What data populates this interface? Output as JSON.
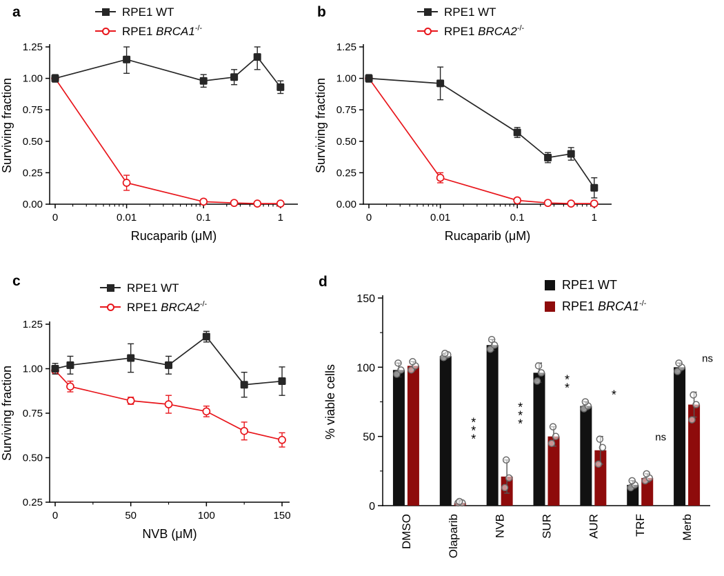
{
  "figure": {
    "background": "#ffffff",
    "panel_letters": [
      "a",
      "b",
      "c",
      "d"
    ]
  },
  "colors": {
    "wt_black": "#262626",
    "line_red": "#e8151b",
    "bar_black": "#111111",
    "bar_dark_red": "#8e0b0b",
    "scatter_gray": "#6b6b6b"
  },
  "chart_data": [
    {
      "id": "a",
      "type": "line",
      "title": "",
      "xlabel": "Rucaparib (μM)",
      "ylabel": "Surviving fraction",
      "xscale": "log-zero",
      "ylim": [
        0,
        1.25
      ],
      "yticks": [
        {
          "v": 0,
          "label": "0.00"
        },
        {
          "v": 0.25,
          "label": "0.25"
        },
        {
          "v": 0.5,
          "label": "0.50"
        },
        {
          "v": 0.75,
          "label": "0.75"
        },
        {
          "v": 1,
          "label": "1.00"
        },
        {
          "v": 1.25,
          "label": "1.25"
        }
      ],
      "xticks": [
        {
          "v": 0,
          "label": "0"
        },
        {
          "v": 0.01,
          "label": "0.01"
        },
        {
          "v": 0.1,
          "label": "0.1"
        },
        {
          "v": 1,
          "label": "1"
        }
      ],
      "legend": [
        {
          "prefix": "RPE1 WT",
          "gene": "",
          "sup": ""
        },
        {
          "prefix": "RPE1 ",
          "gene": "BRCA1",
          "sup": "-/-"
        }
      ],
      "series": [
        {
          "name": "RPE1 WT",
          "marker": "square",
          "color": "#262626",
          "x": [
            0,
            0.01,
            0.1,
            0.25,
            0.5,
            1
          ],
          "y": [
            1.0,
            1.15,
            0.98,
            1.01,
            1.17,
            0.93
          ],
          "err": [
            0.03,
            0.11,
            0.05,
            0.06,
            0.1,
            0.05
          ]
        },
        {
          "name": "RPE1 BRCA1-/-",
          "marker": "open-circle",
          "color": "#e8151b",
          "x": [
            0,
            0.01,
            0.1,
            0.25,
            0.5,
            1
          ],
          "y": [
            1.0,
            0.17,
            0.02,
            0.01,
            0.005,
            0.005
          ],
          "err": [
            0,
            0.06,
            0.02,
            0,
            0,
            0
          ]
        }
      ]
    },
    {
      "id": "b",
      "type": "line",
      "title": "",
      "xlabel": "Rucaparib (μM)",
      "ylabel": "Surviving fraction",
      "xscale": "log-zero",
      "ylim": [
        0,
        1.25
      ],
      "yticks": [
        {
          "v": 0,
          "label": "0.00"
        },
        {
          "v": 0.25,
          "label": "0.25"
        },
        {
          "v": 0.5,
          "label": "0.50"
        },
        {
          "v": 0.75,
          "label": "0.75"
        },
        {
          "v": 1,
          "label": "1.00"
        },
        {
          "v": 1.25,
          "label": "1.25"
        }
      ],
      "xticks": [
        {
          "v": 0,
          "label": "0"
        },
        {
          "v": 0.01,
          "label": "0.01"
        },
        {
          "v": 0.1,
          "label": "0.1"
        },
        {
          "v": 1,
          "label": "1"
        }
      ],
      "legend": [
        {
          "prefix": "RPE1 WT",
          "gene": "",
          "sup": ""
        },
        {
          "prefix": "RPE1 ",
          "gene": "BRCA2",
          "sup": "-/-"
        }
      ],
      "series": [
        {
          "name": "RPE1 WT",
          "marker": "square",
          "color": "#262626",
          "x": [
            0,
            0.01,
            0.1,
            0.25,
            0.5,
            1
          ],
          "y": [
            1.0,
            0.96,
            0.57,
            0.37,
            0.4,
            0.13
          ],
          "err": [
            0.03,
            0.13,
            0.04,
            0.04,
            0.05,
            0.08
          ]
        },
        {
          "name": "RPE1 BRCA2-/-",
          "marker": "open-circle",
          "color": "#e8151b",
          "x": [
            0,
            0.01,
            0.1,
            0.25,
            0.5,
            1
          ],
          "y": [
            1.0,
            0.21,
            0.03,
            0.01,
            0.005,
            0.005
          ],
          "err": [
            0,
            0.04,
            0.02,
            0,
            0,
            0
          ]
        }
      ]
    },
    {
      "id": "c",
      "type": "line",
      "title": "",
      "xlabel": "NVB (μM)",
      "ylabel": "Surviving fraction",
      "xscale": "linear",
      "xlim": [
        0,
        155
      ],
      "xminor": [
        25,
        75,
        125
      ],
      "ylim": [
        0.25,
        1.25
      ],
      "yticks": [
        {
          "v": 0.25,
          "label": "0.25"
        },
        {
          "v": 0.5,
          "label": "0.50"
        },
        {
          "v": 0.75,
          "label": "0.75"
        },
        {
          "v": 1,
          "label": "1.00"
        },
        {
          "v": 1.25,
          "label": "1.25"
        }
      ],
      "xticks": [
        {
          "v": 0,
          "label": "0"
        },
        {
          "v": 50,
          "label": "50"
        },
        {
          "v": 100,
          "label": "100"
        },
        {
          "v": 150,
          "label": "150"
        }
      ],
      "legend": [
        {
          "prefix": "RPE1 WT",
          "gene": "",
          "sup": ""
        },
        {
          "prefix": "RPE1 ",
          "gene": "BRCA2",
          "sup": "-/-"
        }
      ],
      "series": [
        {
          "name": "RPE1 WT",
          "marker": "square",
          "color": "#262626",
          "x": [
            0,
            10,
            50,
            75,
            100,
            125,
            150
          ],
          "y": [
            1.0,
            1.02,
            1.06,
            1.02,
            1.18,
            0.91,
            0.93
          ],
          "err": [
            0.03,
            0.05,
            0.08,
            0.05,
            0.03,
            0.07,
            0.08
          ]
        },
        {
          "name": "RPE1 BRCA2-/-",
          "marker": "open-circle",
          "color": "#e8151b",
          "x": [
            0,
            10,
            50,
            75,
            100,
            125,
            150
          ],
          "y": [
            0.99,
            0.9,
            0.82,
            0.8,
            0.76,
            0.65,
            0.6
          ],
          "err": [
            0,
            0.03,
            0.02,
            0.05,
            0.03,
            0.05,
            0.04
          ]
        }
      ]
    },
    {
      "id": "d",
      "type": "bar",
      "title": "",
      "xlabel": "",
      "ylabel": "% viable cells",
      "ylim": [
        0,
        150
      ],
      "yticks": [
        {
          "v": 0,
          "label": "0"
        },
        {
          "v": 50,
          "label": "50"
        },
        {
          "v": 100,
          "label": "100"
        },
        {
          "v": 150,
          "label": "150"
        }
      ],
      "yminor": [
        25,
        75,
        125
      ],
      "categories": [
        "DMSO",
        "Olaparib",
        "NVB",
        "SUR",
        "AUR",
        "TRF",
        "Merb"
      ],
      "legend": [
        {
          "prefix": "RPE1 WT",
          "gene": "",
          "sup": ""
        },
        {
          "prefix": "RPE1 ",
          "gene": "BRCA1",
          "sup": "-/-"
        }
      ],
      "series": [
        {
          "name": "RPE1 WT",
          "color": "#111111",
          "values": [
            98,
            108,
            116,
            96,
            72,
            15,
            100
          ],
          "err": [
            5,
            2,
            4,
            7,
            3,
            3,
            3
          ],
          "points": [
            [
              95,
              98,
              103
            ],
            [
              107,
              109,
              110
            ],
            [
              113,
              116,
              120
            ],
            [
              90,
              96,
              101
            ],
            [
              70,
              72,
              75
            ],
            [
              13,
              15,
              18
            ],
            [
              97,
              100,
              103
            ]
          ]
        },
        {
          "name": "RPE1 BRCA1-/-",
          "color": "#8e0b0b",
          "values": [
            101,
            2,
            21,
            50,
            40,
            20,
            73
          ],
          "err": [
            3,
            1,
            12,
            7,
            10,
            3,
            9
          ],
          "points": [
            [
              98,
              101,
              104
            ],
            [
              2,
              2,
              3
            ],
            [
              13,
              20,
              33
            ],
            [
              45,
              50,
              57
            ],
            [
              30,
              42,
              48
            ],
            [
              18,
              20,
              23
            ],
            [
              62,
              73,
              80
            ]
          ]
        }
      ],
      "annotations": [
        {
          "category": "Olaparib",
          "text": "***",
          "y": 57
        },
        {
          "category": "NVB",
          "text": "***",
          "y": 68
        },
        {
          "category": "SUR",
          "text": "**",
          "y": 88
        },
        {
          "category": "AUR",
          "text": "*",
          "y": 77
        },
        {
          "category": "TRF",
          "text": "ns",
          "y": 47
        },
        {
          "category": "Merb",
          "text": "ns",
          "y": 104
        }
      ]
    }
  ]
}
